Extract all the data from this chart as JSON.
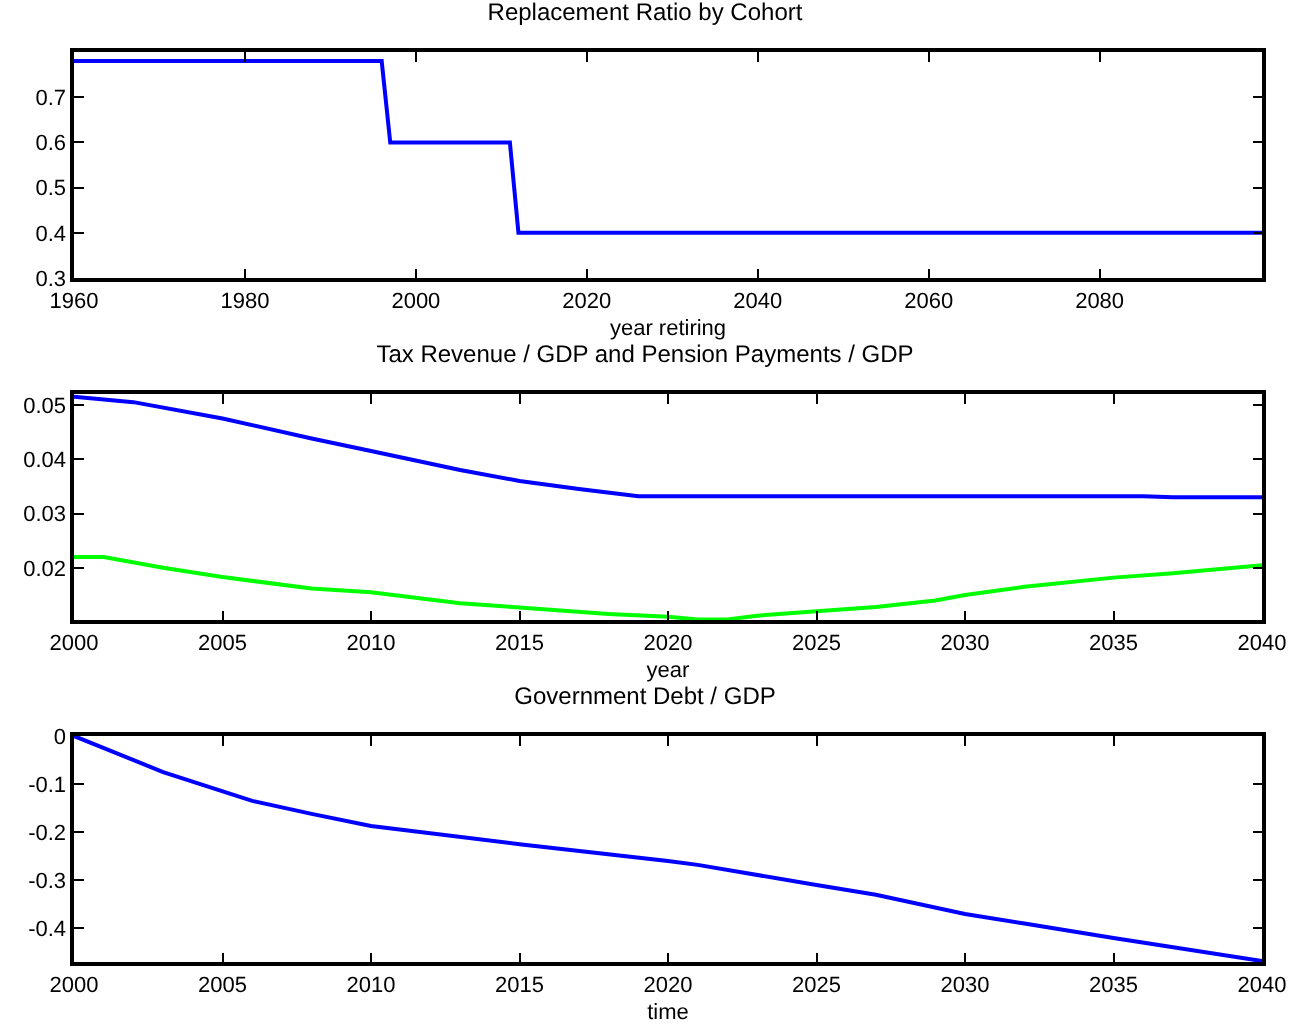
{
  "chart_data": [
    {
      "type": "line",
      "title": "Replacement Ratio by Cohort",
      "xlabel": "year retiring",
      "xlim": [
        1960,
        2099
      ],
      "xticks": [
        1960,
        1980,
        2000,
        2020,
        2040,
        2060,
        2080
      ],
      "ylim": [
        0.3,
        0.8
      ],
      "yticks": [
        0.3,
        0.4,
        0.5,
        0.6,
        0.7
      ],
      "series": [
        {
          "color": "#0000ff",
          "x": [
            1960,
            1996,
            1997,
            2011,
            2012,
            2099
          ],
          "values": [
            0.78,
            0.78,
            0.6,
            0.6,
            0.4,
            0.4
          ]
        }
      ]
    },
    {
      "type": "line",
      "title": "Tax Revenue / GDP and Pension Payments / GDP",
      "xlabel": "year",
      "xlim": [
        2000,
        2040
      ],
      "xticks": [
        2000,
        2005,
        2010,
        2015,
        2020,
        2025,
        2030,
        2035,
        2040
      ],
      "ylim": [
        0.0104,
        0.052
      ],
      "yticks": [
        0.02,
        0.03,
        0.04,
        0.05
      ],
      "series": [
        {
          "color": "#0000ff",
          "x": [
            2000,
            2002,
            2005,
            2008,
            2010,
            2013,
            2015,
            2017,
            2019,
            2025,
            2030,
            2036,
            2037,
            2040
          ],
          "values": [
            0.0515,
            0.0505,
            0.0475,
            0.0438,
            0.0415,
            0.038,
            0.036,
            0.0345,
            0.0332,
            0.0332,
            0.0332,
            0.0332,
            0.033,
            0.033
          ]
        },
        {
          "color": "#00ff00",
          "x": [
            2000,
            2001,
            2003,
            2005,
            2008,
            2010,
            2013,
            2015,
            2018,
            2020,
            2021,
            2022,
            2023,
            2025,
            2027,
            2029,
            2030,
            2032,
            2035,
            2037,
            2040
          ],
          "values": [
            0.022,
            0.022,
            0.02,
            0.0183,
            0.0162,
            0.0155,
            0.0135,
            0.0127,
            0.0115,
            0.011,
            0.0105,
            0.0105,
            0.0112,
            0.012,
            0.0128,
            0.014,
            0.015,
            0.0165,
            0.0182,
            0.019,
            0.0205
          ]
        }
      ]
    },
    {
      "type": "line",
      "title": "Government Debt / GDP",
      "xlabel": "time",
      "xlim": [
        2000,
        2040
      ],
      "xticks": [
        2000,
        2005,
        2010,
        2015,
        2020,
        2025,
        2030,
        2035,
        2040
      ],
      "ylim": [
        -0.47,
        0
      ],
      "yticks": [
        -0.4,
        -0.3,
        -0.2,
        -0.1,
        0
      ],
      "series": [
        {
          "color": "#0000ff",
          "x": [
            2000,
            2003,
            2006,
            2008,
            2010,
            2015,
            2020,
            2021,
            2025,
            2027,
            2030,
            2032,
            2035,
            2040
          ],
          "values": [
            0,
            -0.075,
            -0.135,
            -0.162,
            -0.187,
            -0.225,
            -0.26,
            -0.268,
            -0.31,
            -0.33,
            -0.37,
            -0.39,
            -0.42,
            -0.468
          ]
        }
      ]
    }
  ]
}
